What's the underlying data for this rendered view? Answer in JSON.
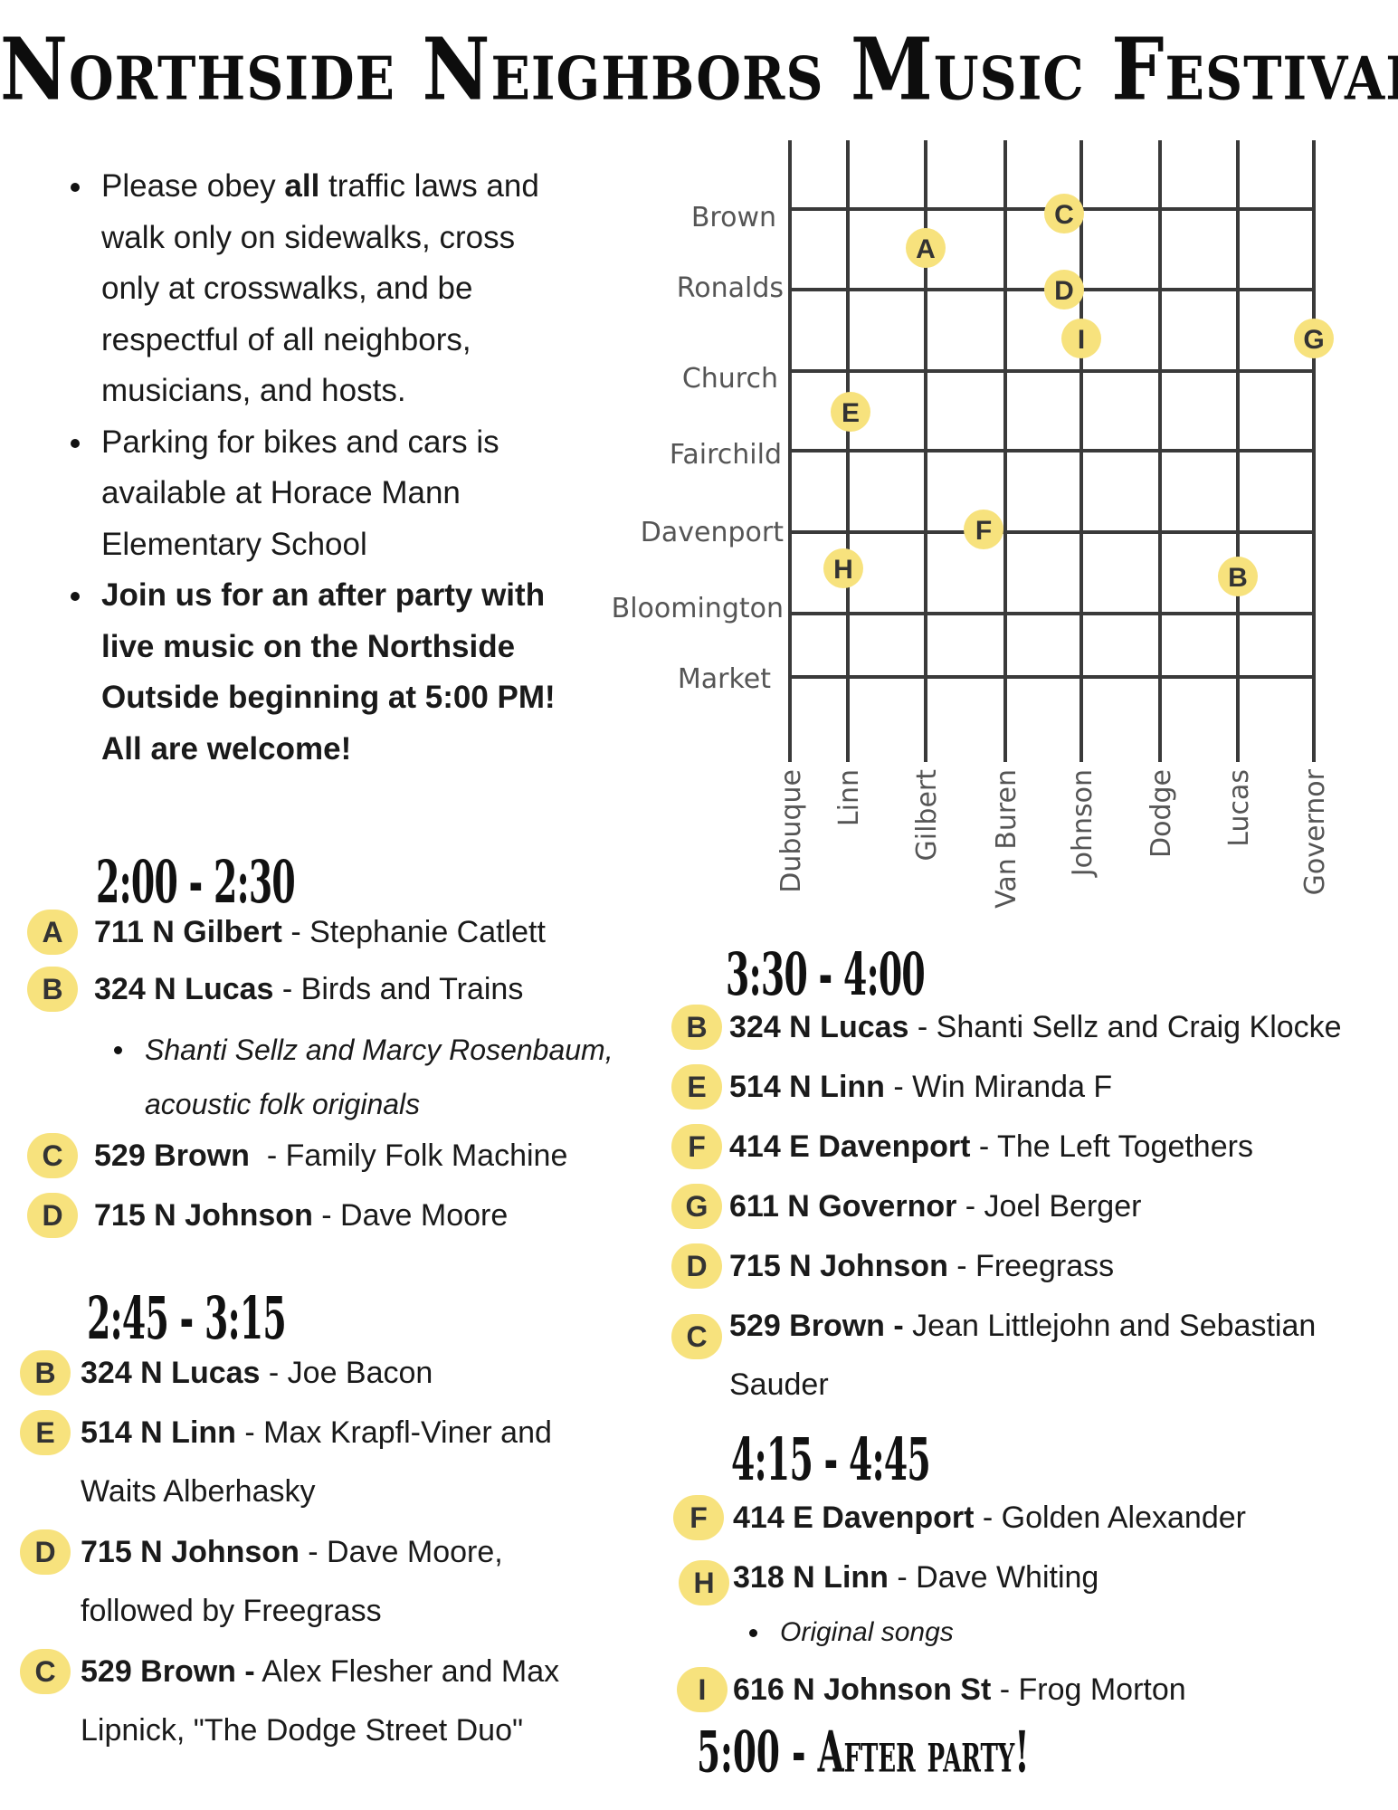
{
  "title": "Northside Neighbors Music Festival",
  "intro": {
    "item1_pre": "Please obey ",
    "item1_bold": "all",
    "item1_post": " traffic laws and walk only on sidewalks, cross only at crosswalks, and be respectful of all neighbors, musicians, and hosts.",
    "item2": "Parking for bikes and cars is available at Horace Mann Elementary School",
    "item3": "Join us for an after party with live music on the Northside Outside beginning at 5:00 PM! All are welcome!"
  },
  "map": {
    "horizontal_streets": [
      "Brown",
      "Ronalds",
      "Church",
      "Fairchild",
      "Davenport",
      "Bloomington",
      "Market"
    ],
    "vertical_streets": [
      "Dubuque",
      "Linn",
      "Gilbert",
      "Van Buren",
      "Johnson",
      "Dodge",
      "Lucas",
      "Governor"
    ],
    "pins": [
      "A",
      "B",
      "C",
      "D",
      "E",
      "F",
      "G",
      "H",
      "I"
    ]
  },
  "schedule": {
    "slot1": {
      "time": "2:00 - 2:30",
      "entries": [
        {
          "badge": "A",
          "address": "711 N Gilbert",
          "act": " - Stephanie Catlett"
        },
        {
          "badge": "B",
          "address": "324 N Lucas",
          "act": " - Birds and Trains"
        },
        {
          "badge": "C",
          "address": "529 Brown",
          "act": "  - Family Folk Machine"
        },
        {
          "badge": "D",
          "address": "715 N Johnson",
          "act": " - Dave Moore"
        }
      ],
      "note": "Shanti Sellz and Marcy Rosenbaum, acoustic folk originals"
    },
    "slot2": {
      "time": "2:45 - 3:15",
      "entries": [
        {
          "badge": "B",
          "address": "324 N Lucas",
          "act": " - Joe Bacon"
        },
        {
          "badge": "E",
          "address": "514 N Linn",
          "act": " - Max Krapfl-Viner and Waits Alberhasky"
        },
        {
          "badge": "D",
          "address": "715 N Johnson",
          "act": " - Dave Moore, followed by Freegrass"
        },
        {
          "badge": "C",
          "address": "529 Brown -",
          "act": " Alex Flesher and Max Lipnick, \"The Dodge Street Duo\""
        }
      ]
    },
    "slot3": {
      "time": "3:30 - 4:00",
      "entries": [
        {
          "badge": "B",
          "address": "324 N Lucas",
          "act": " - Shanti Sellz and Craig Klocke"
        },
        {
          "badge": "E",
          "address": "514 N Linn",
          "act": " - Win Miranda F"
        },
        {
          "badge": "F",
          "address": "414 E Davenport",
          "act": " - The Left Togethers"
        },
        {
          "badge": "G",
          "address": "611 N Governor",
          "act": " - Joel Berger"
        },
        {
          "badge": "D",
          "address": "715 N Johnson",
          "act": " - Freegrass"
        },
        {
          "badge": "C",
          "address": "529 Brown -",
          "act": " Jean Littlejohn and Sebastian Sauder"
        }
      ]
    },
    "slot4": {
      "time": "4:15 - 4:45",
      "entries": [
        {
          "badge": "F",
          "address": "414 E Davenport",
          "act": " - Golden Alexander"
        },
        {
          "badge": "H",
          "address": "318 N Linn",
          "act": " - Dave Whiting"
        },
        {
          "badge": "I",
          "address": "616 N Johnson St",
          "act": " - Frog Morton"
        }
      ],
      "note": "Original songs"
    },
    "after_party": "5:00 - After party!"
  },
  "colors": {
    "badge": "#f7e27d",
    "grid": "#3a3a3a",
    "text": "#1a1a1a"
  }
}
